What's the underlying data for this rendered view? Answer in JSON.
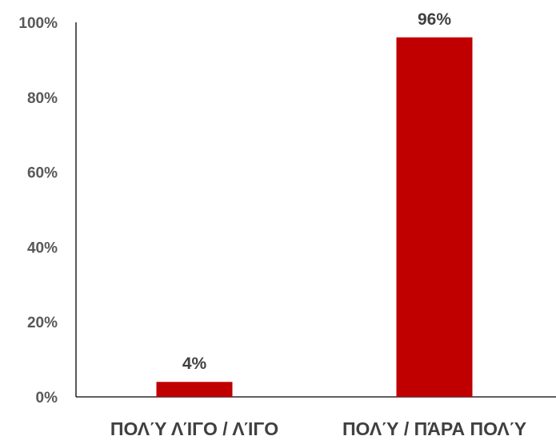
{
  "chart_data": {
    "type": "bar",
    "categories": [
      "ΠΟΛΎ ΛΊΓΟ / ΛΊΓΟ",
      "ΠΟΛΎ / ΠΆΡΑ ΠΟΛΎ"
    ],
    "values": [
      4,
      96
    ],
    "value_labels": [
      "4%",
      "96%"
    ],
    "ylim": [
      0,
      100
    ],
    "y_ticks": [
      0,
      20,
      40,
      60,
      80,
      100
    ],
    "y_tick_labels": [
      "0%",
      "20%",
      "40%",
      "60%",
      "80%",
      "100%"
    ],
    "grid": false,
    "legend": "none",
    "title": "",
    "xlabel": "",
    "ylabel": "",
    "bar_color": "#C00000"
  }
}
